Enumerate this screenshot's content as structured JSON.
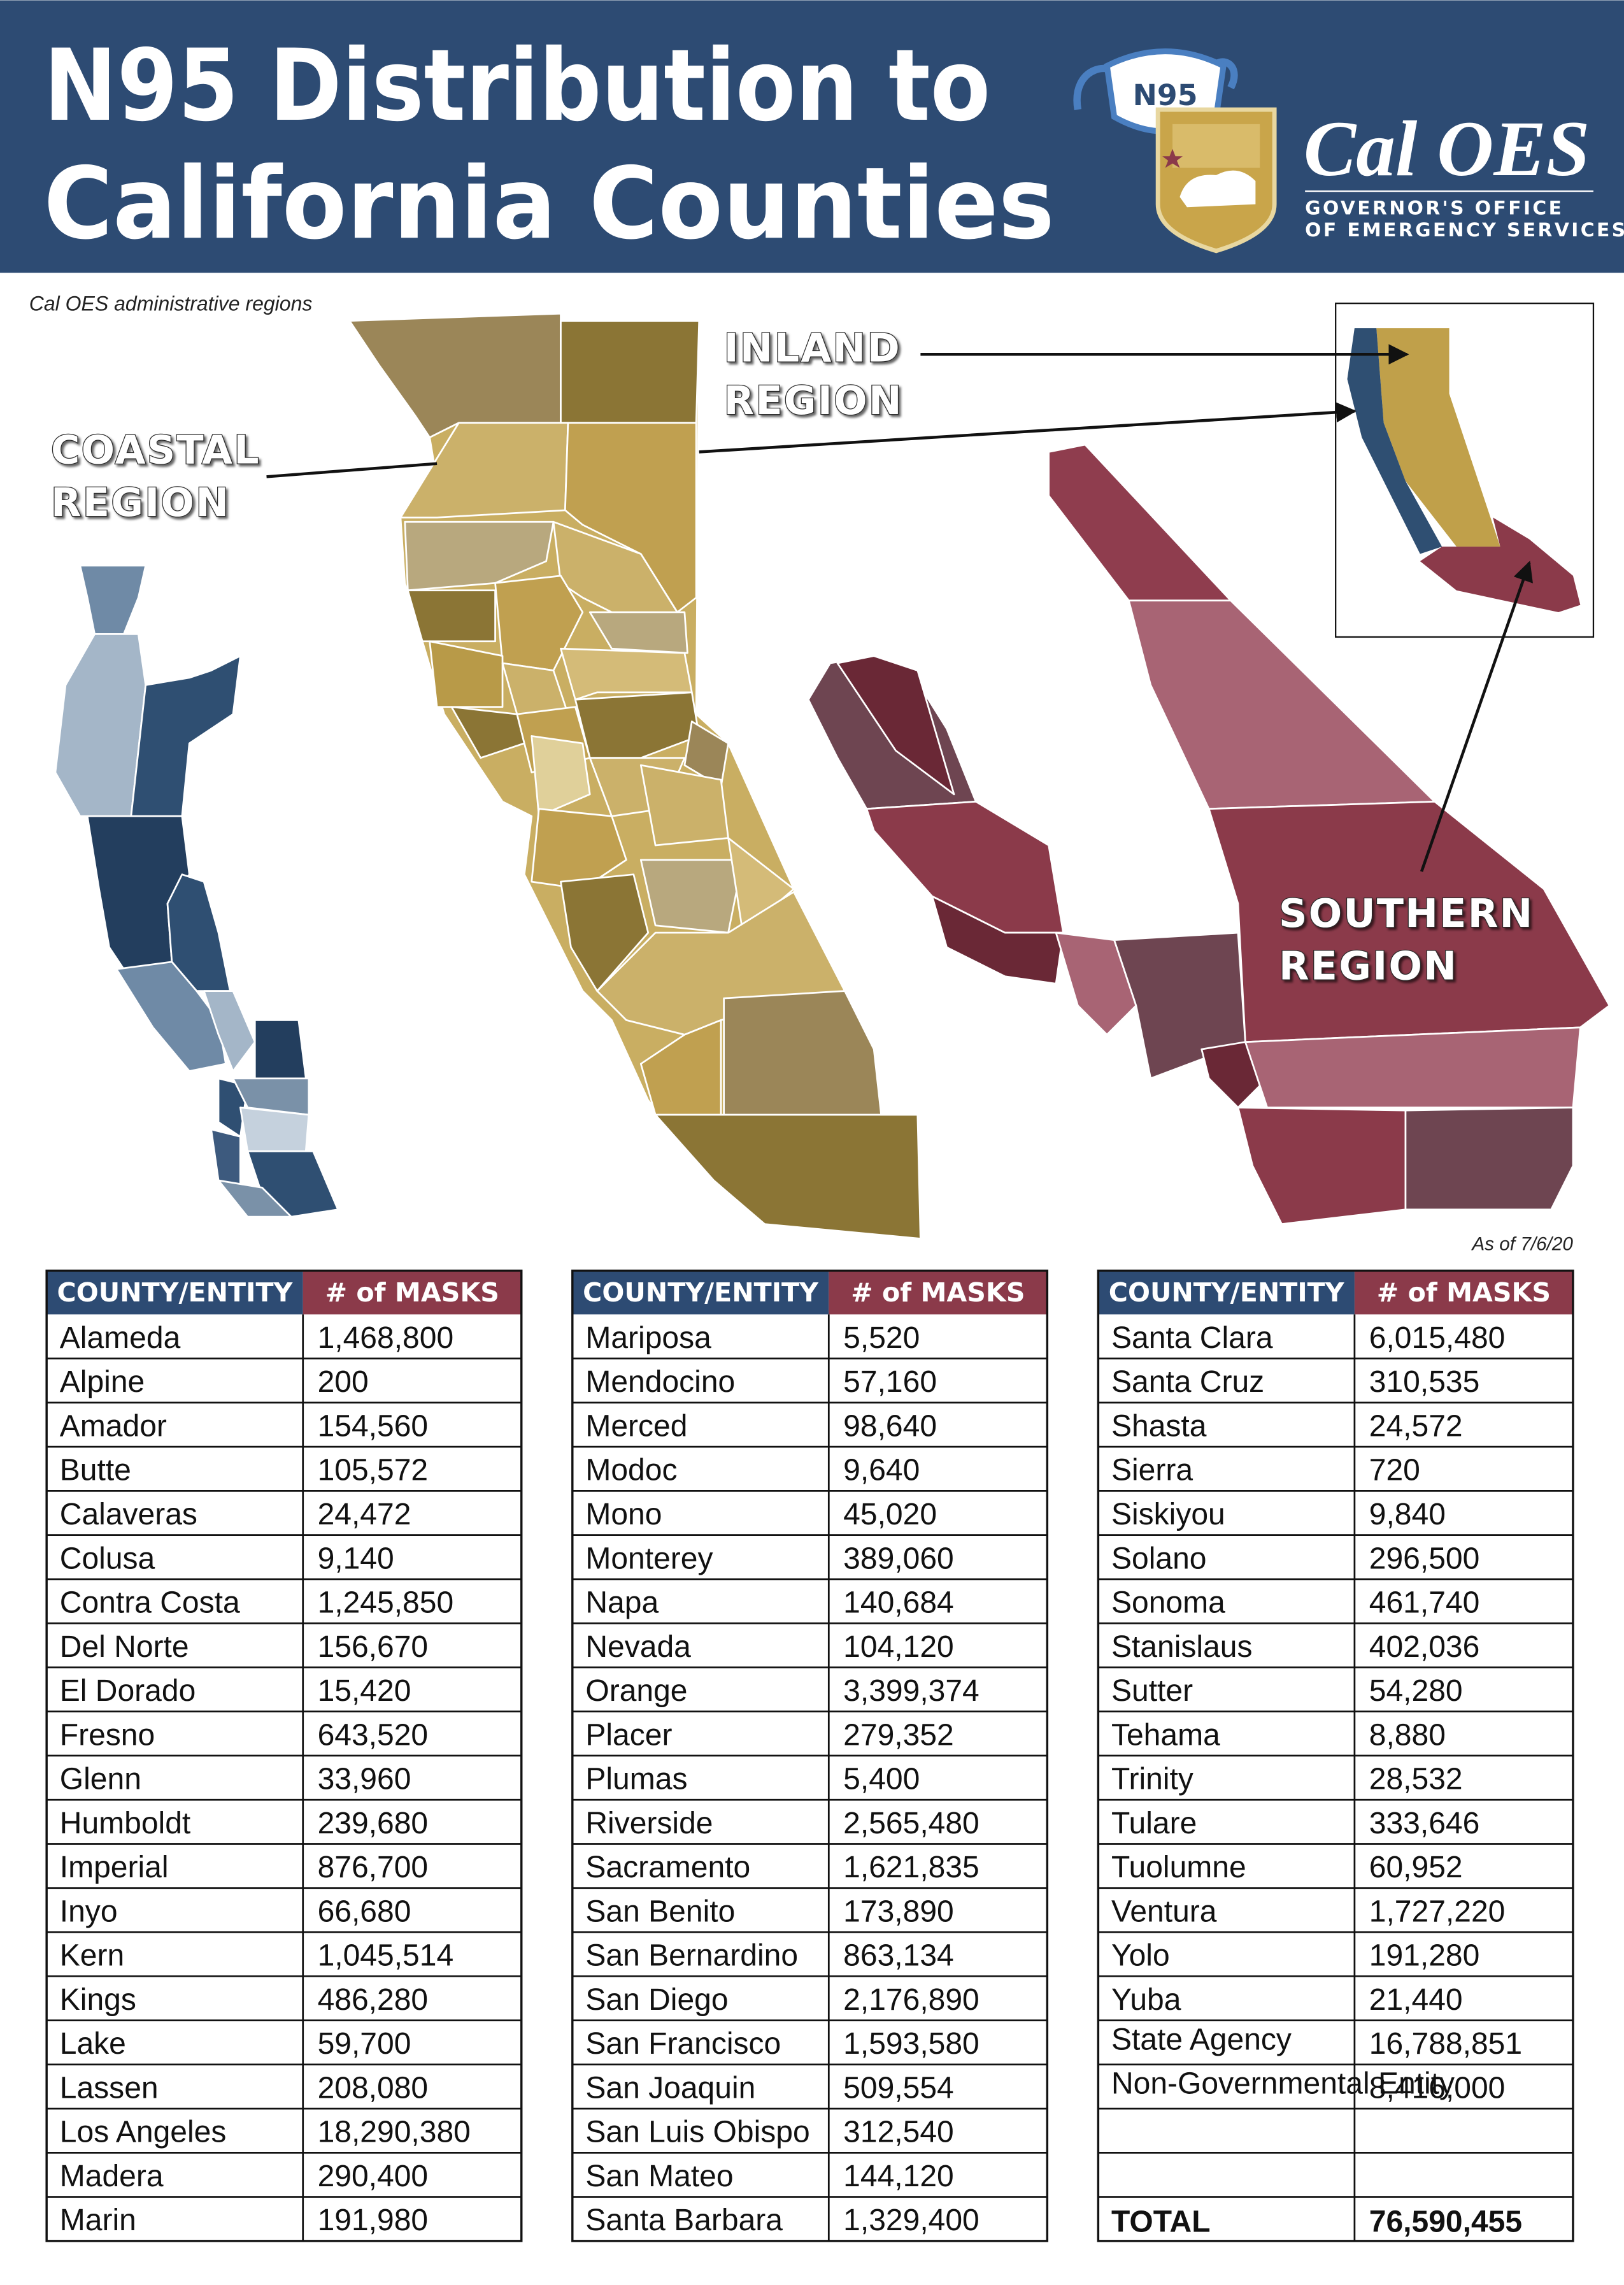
{
  "header": {
    "title_lines": [
      "N95 Distribution to",
      "California Counties"
    ],
    "logo": {
      "mask_label": "N95",
      "name": "Cal OES",
      "subtitle_lines": [
        "GOVERNOR'S OFFICE",
        "OF EMERGENCY SERVICES"
      ]
    }
  },
  "map": {
    "caption": "Cal OES administrative regions",
    "regions": [
      {
        "lines": [
          "COASTAL",
          "REGION"
        ]
      },
      {
        "lines": [
          "INLAND",
          "REGION"
        ]
      },
      {
        "lines": [
          "SOUTHERN",
          "REGION"
        ]
      }
    ],
    "as_of": "As of  7/6/20"
  },
  "tables": [
    {
      "columns": [
        "COUNTY/ENTITY",
        "# of MASKS"
      ],
      "rows": [
        [
          "Alameda",
          "1,468,800"
        ],
        [
          "Alpine",
          "200"
        ],
        [
          "Amador",
          "154,560"
        ],
        [
          "Butte",
          "105,572"
        ],
        [
          "Calaveras",
          "24,472"
        ],
        [
          "Colusa",
          "9,140"
        ],
        [
          "Contra Costa",
          "1,245,850"
        ],
        [
          "Del Norte",
          "156,670"
        ],
        [
          "El Dorado",
          "15,420"
        ],
        [
          "Fresno",
          "643,520"
        ],
        [
          "Glenn",
          "33,960"
        ],
        [
          "Humboldt",
          "239,680"
        ],
        [
          "Imperial",
          "876,700"
        ],
        [
          "Inyo",
          "66,680"
        ],
        [
          "Kern",
          "1,045,514"
        ],
        [
          "Kings",
          "486,280"
        ],
        [
          "Lake",
          "59,700"
        ],
        [
          "Lassen",
          "208,080"
        ],
        [
          "Los Angeles",
          "18,290,380"
        ],
        [
          "Madera",
          "290,400"
        ],
        [
          "Marin",
          "191,980"
        ]
      ]
    },
    {
      "columns": [
        "COUNTY/ENTITY",
        "# of MASKS"
      ],
      "rows": [
        [
          "Mariposa",
          "5,520"
        ],
        [
          "Mendocino",
          "57,160"
        ],
        [
          "Merced",
          "98,640"
        ],
        [
          "Modoc",
          "9,640"
        ],
        [
          "Mono",
          "45,020"
        ],
        [
          "Monterey",
          "389,060"
        ],
        [
          "Napa",
          "140,684"
        ],
        [
          "Nevada",
          "104,120"
        ],
        [
          "Orange",
          "3,399,374"
        ],
        [
          "Placer",
          "279,352"
        ],
        [
          "Plumas",
          "5,400"
        ],
        [
          "Riverside",
          "2,565,480"
        ],
        [
          "Sacramento",
          "1,621,835"
        ],
        [
          "San Benito",
          "173,890"
        ],
        [
          "San Bernardino",
          "863,134"
        ],
        [
          "San Diego",
          "2,176,890"
        ],
        [
          "San Francisco",
          "1,593,580"
        ],
        [
          "San Joaquin",
          "509,554"
        ],
        [
          "San Luis Obispo",
          "312,540"
        ],
        [
          "San Mateo",
          "144,120"
        ],
        [
          "Santa Barbara",
          "1,329,400"
        ]
      ]
    },
    {
      "columns": [
        "COUNTY/ENTITY",
        "# of MASKS"
      ],
      "rows": [
        [
          "Santa Clara",
          "6,015,480"
        ],
        [
          "Santa Cruz",
          "310,535"
        ],
        [
          "Shasta",
          "24,572"
        ],
        [
          "Sierra",
          "720"
        ],
        [
          "Siskiyou",
          "9,840"
        ],
        [
          "Solano",
          "296,500"
        ],
        [
          "Sonoma",
          "461,740"
        ],
        [
          "Stanislaus",
          "402,036"
        ],
        [
          "Sutter",
          "54,280"
        ],
        [
          "Tehama",
          "8,880"
        ],
        [
          "Trinity",
          "28,532"
        ],
        [
          "Tulare",
          "333,646"
        ],
        [
          "Tuolumne",
          "60,952"
        ],
        [
          "Ventura",
          "1,727,220"
        ],
        [
          "Yolo",
          "191,280"
        ],
        [
          "Yuba",
          "21,440"
        ],
        [
          "State Agency",
          "16,788,851"
        ],
        [
          "Non-Governmental Entity",
          "8,416,000"
        ]
      ],
      "total": [
        "TOTAL",
        "76,590,455"
      ]
    }
  ]
}
